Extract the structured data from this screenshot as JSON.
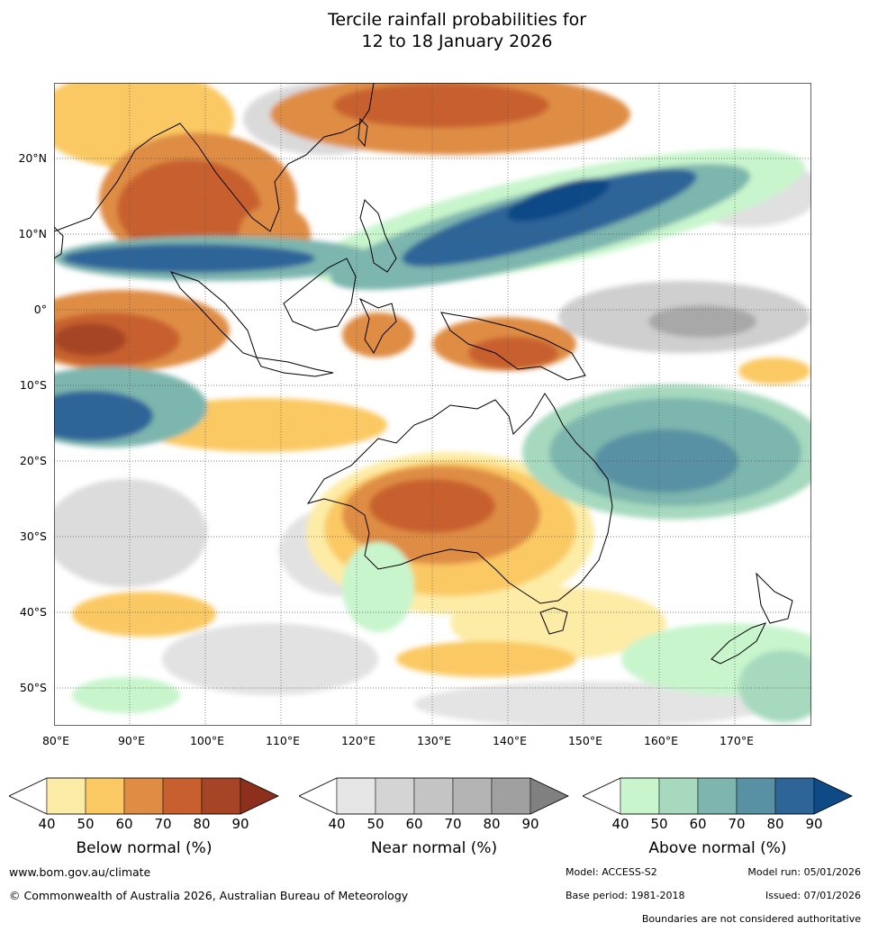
{
  "title": {
    "line1": "Tercile rainfall probabilities for",
    "line2": "12 to 18 January 2026"
  },
  "axes": {
    "lat_labels": [
      "20°N",
      "10°N",
      "0°",
      "10°S",
      "20°S",
      "30°S",
      "40°S",
      "50°S"
    ],
    "lon_labels": [
      "80°E",
      "90°E",
      "100°E",
      "110°E",
      "120°E",
      "130°E",
      "140°E",
      "150°E",
      "160°E",
      "170°E"
    ],
    "lon_range": [
      80,
      180
    ],
    "lat_range": [
      -55,
      30
    ]
  },
  "legends": [
    {
      "caption": "Below normal (%)",
      "ticks": [
        "40",
        "50",
        "60",
        "70",
        "80",
        "90"
      ],
      "colors": [
        "#ffffff",
        "#fdeca6",
        "#fbc964",
        "#df8d45",
        "#c7602e",
        "#a64525",
        "#8c2f1c"
      ]
    },
    {
      "caption": "Near normal (%)",
      "ticks": [
        "40",
        "50",
        "60",
        "70",
        "80",
        "90"
      ],
      "colors": [
        "#ffffff",
        "#e6e6e6",
        "#d4d4d4",
        "#c4c4c4",
        "#b4b4b4",
        "#a0a0a0",
        "#808080"
      ]
    },
    {
      "caption": "Above normal (%)",
      "ticks": [
        "40",
        "50",
        "60",
        "70",
        "80",
        "90"
      ],
      "colors": [
        "#ffffff",
        "#c8f5cc",
        "#a6d9be",
        "#7db6ae",
        "#5891a3",
        "#2e6599",
        "#0e4a86"
      ]
    }
  ],
  "footer": {
    "website": "www.bom.gov.au/climate",
    "copyright": "© Commonwealth of Australia 2026, Australian Bureau of Meteorology",
    "model": "Model: ACCESS-S2",
    "model_run": "Model run: 05/01/2026",
    "base_period": "Base period: 1981-2018",
    "issued": "Issued: 07/01/2026",
    "disclaimer": "Boundaries are not considered authoritative"
  }
}
